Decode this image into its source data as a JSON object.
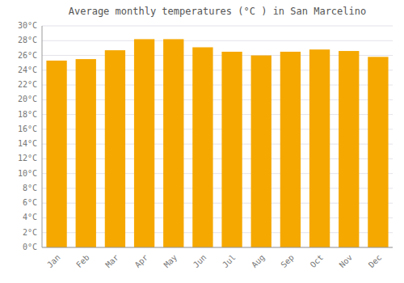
{
  "chart_data": {
    "type": "bar",
    "title": "Average monthly temperatures (°C ) in San Marcelino",
    "categories": [
      "Jan",
      "Feb",
      "Mar",
      "Apr",
      "May",
      "Jun",
      "Jul",
      "Aug",
      "Sep",
      "Oct",
      "Nov",
      "Dec"
    ],
    "values": [
      25.3,
      25.5,
      26.7,
      28.2,
      28.2,
      27.1,
      26.5,
      26.0,
      26.5,
      26.8,
      26.6,
      25.8
    ],
    "color": "#F5A800",
    "ylim": [
      0,
      30
    ],
    "yticks": [
      {
        "value": 0,
        "label": "0°C"
      },
      {
        "value": 2,
        "label": "2°C"
      },
      {
        "value": 4,
        "label": "4°C"
      },
      {
        "value": 6,
        "label": "6°C"
      },
      {
        "value": 8,
        "label": "8°C"
      },
      {
        "value": 10,
        "label": "10°C"
      },
      {
        "value": 12,
        "label": "12°C"
      },
      {
        "value": 14,
        "label": "14°C"
      },
      {
        "value": 16,
        "label": "16°C"
      },
      {
        "value": 18,
        "label": "18°C"
      },
      {
        "value": 20,
        "label": "20°C"
      },
      {
        "value": 22,
        "label": "22°C"
      },
      {
        "value": 24,
        "label": "24°C"
      },
      {
        "value": 26,
        "label": "26°C"
      },
      {
        "value": 28,
        "label": "28°C"
      },
      {
        "value": 30,
        "label": "30°C"
      }
    ],
    "grid": true
  }
}
